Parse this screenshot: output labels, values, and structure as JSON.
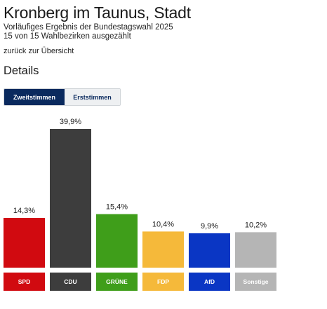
{
  "header": {
    "title": "Kronberg im Taunus, Stadt",
    "subtitle_line1": "Vorläufiges Ergebnis der Bundestagswahl 2025",
    "subtitle_line2": "15 von 15 Wahlbezirken ausgezählt",
    "back_link": "zurück zur Übersicht",
    "details": "Details"
  },
  "tabs": [
    {
      "label": "Zweitstimmen",
      "active": true
    },
    {
      "label": "Erststimmen",
      "active": false
    }
  ],
  "chart_data": {
    "type": "bar",
    "categories": [
      "SPD",
      "CDU",
      "GRÜNE",
      "FDP",
      "AfD",
      "Sonstige"
    ],
    "values": [
      14.3,
      39.9,
      15.4,
      10.4,
      9.9,
      10.2
    ],
    "value_labels": [
      "14,3%",
      "39,9%",
      "15,4%",
      "10,4%",
      "9,9%",
      "10,2%"
    ],
    "colors": [
      "#d10a10",
      "#3d3d3d",
      "#3f9e1a",
      "#f5b93a",
      "#0a36c4",
      "#b5b5b5"
    ],
    "label_text_colors": [
      "#ffffff",
      "#ffffff",
      "#ffffff",
      "#ffffff",
      "#ffffff",
      "#ffffff"
    ],
    "ylim": [
      0,
      39.9
    ],
    "title": "",
    "xlabel": "",
    "ylabel": ""
  }
}
